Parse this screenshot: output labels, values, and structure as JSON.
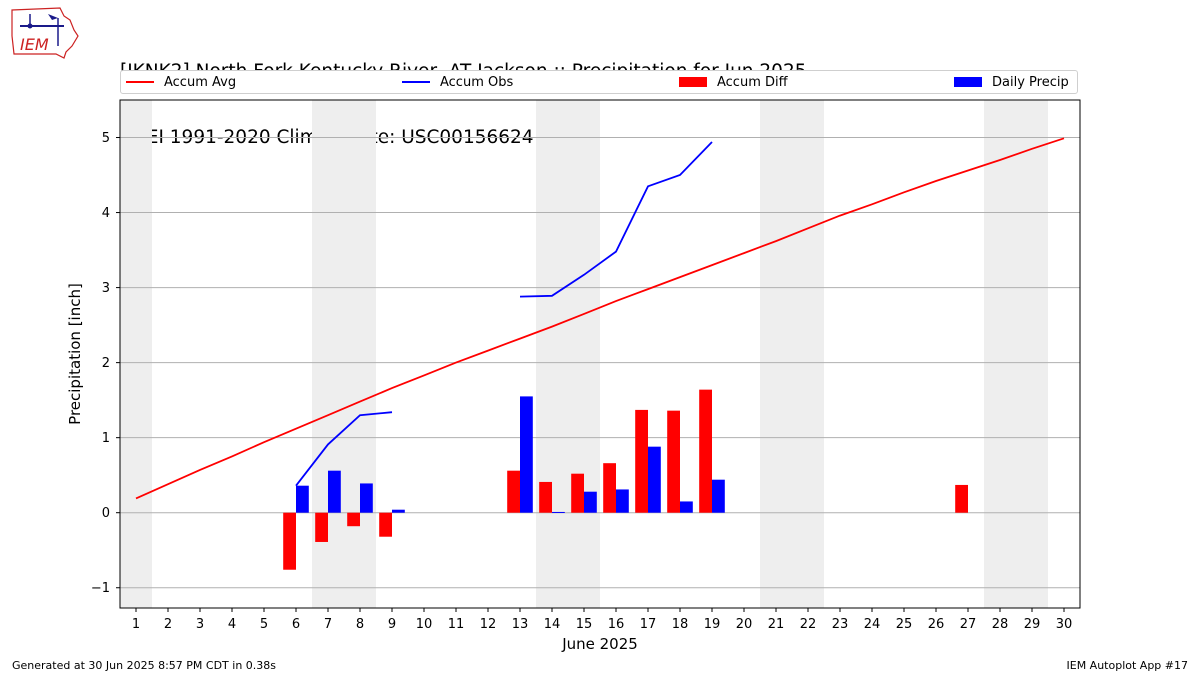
{
  "title": {
    "line1": "[JKNK2] North Fork Kentucky River  AT Jackson :: Precipitation for Jun 2025",
    "line2": "NCEI 1991-2020 Climate Site: USC00156624"
  },
  "logo": {
    "text": "IEM"
  },
  "footer": {
    "left": "Generated at 30 Jun 2025 8:57 PM CDT in 0.38s",
    "right": "IEM Autoplot App #17"
  },
  "legend": [
    {
      "label": "Accum Avg",
      "kind": "line",
      "color": "#ff0000"
    },
    {
      "label": "Accum Obs",
      "kind": "line",
      "color": "#0000ff"
    },
    {
      "label": "Accum Diff",
      "kind": "bar",
      "color": "#ff0000"
    },
    {
      "label": "Daily Precip",
      "kind": "bar",
      "color": "#0000ff"
    }
  ],
  "chart_data": {
    "type": "bar",
    "xlabel": "June 2025",
    "ylabel": "Precipitation [inch]",
    "xlim": [
      0.5,
      30.5
    ],
    "ylim": [
      -1.27,
      5.5
    ],
    "yticks": [
      -1,
      0,
      1,
      2,
      3,
      4,
      5
    ],
    "ytick_labels": [
      "−1",
      "0",
      "1",
      "2",
      "3",
      "4",
      "5"
    ],
    "grid": "horizontal",
    "weekend_shading_days": [
      1,
      7,
      8,
      14,
      15,
      21,
      22,
      28,
      29
    ],
    "x": [
      1,
      2,
      3,
      4,
      5,
      6,
      7,
      8,
      9,
      10,
      11,
      12,
      13,
      14,
      15,
      16,
      17,
      18,
      19,
      20,
      21,
      22,
      23,
      24,
      25,
      26,
      27,
      28,
      29,
      30
    ],
    "series": [
      {
        "name": "Accum Avg",
        "kind": "line",
        "color": "#ff0000",
        "values": [
          0.19,
          0.38,
          0.57,
          0.75,
          0.94,
          1.12,
          1.3,
          1.48,
          1.66,
          1.83,
          2.0,
          2.16,
          2.32,
          2.48,
          2.65,
          2.82,
          2.98,
          3.14,
          3.3,
          3.46,
          3.62,
          3.79,
          3.96,
          4.11,
          4.27,
          4.42,
          4.56,
          4.7,
          4.85,
          4.99
        ]
      },
      {
        "name": "Accum Obs",
        "kind": "line",
        "color": "#0000ff",
        "values": [
          null,
          null,
          null,
          null,
          null,
          0.36,
          0.91,
          1.3,
          1.34,
          null,
          null,
          null,
          2.88,
          2.89,
          3.17,
          3.48,
          4.35,
          4.5,
          4.94,
          null,
          null,
          null,
          null,
          null,
          null,
          null,
          null,
          null,
          null,
          null
        ]
      },
      {
        "name": "Accum Diff",
        "kind": "bar",
        "color": "#ff0000",
        "values": [
          null,
          null,
          null,
          null,
          null,
          -0.76,
          -0.39,
          -0.18,
          -0.32,
          null,
          null,
          null,
          0.56,
          0.41,
          0.52,
          0.66,
          1.37,
          1.36,
          1.64,
          null,
          null,
          null,
          null,
          null,
          null,
          null,
          0.37,
          null,
          null,
          null
        ]
      },
      {
        "name": "Daily Precip",
        "kind": "bar",
        "color": "#0000ff",
        "values": [
          null,
          null,
          null,
          null,
          null,
          0.36,
          0.56,
          0.39,
          0.04,
          null,
          null,
          null,
          1.55,
          0.01,
          0.28,
          0.31,
          0.88,
          0.15,
          0.44,
          null,
          null,
          null,
          null,
          null,
          null,
          null,
          null,
          null,
          null,
          null
        ]
      }
    ]
  }
}
